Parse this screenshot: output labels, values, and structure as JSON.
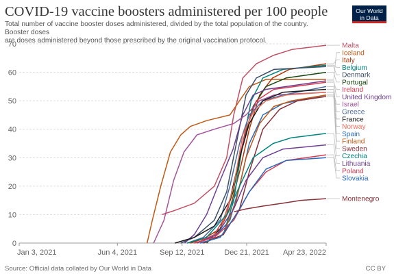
{
  "title": "COVID-19 vaccine boosters administered per 100 people",
  "subtitle_line1": "Total number of vaccine booster doses administered, divided by the total population of the country. Booster doses",
  "subtitle_line2": "are doses administered beyond those prescribed by the original vaccination protocol.",
  "logo": {
    "line1": "Our World",
    "line2": "in Data"
  },
  "footer": {
    "source": "Source: Official data collated by Our World in Data",
    "license": "CC BY"
  },
  "chart_data": {
    "type": "line",
    "title": "COVID-19 vaccine boosters administered per 100 people",
    "xlabel": "",
    "ylabel": "",
    "ylim": [
      0,
      70
    ],
    "yticks": [
      0,
      10,
      20,
      30,
      40,
      50,
      60,
      70
    ],
    "xlim": [
      "2021-01-03",
      "2022-04-23"
    ],
    "xticks": [
      {
        "label": "Jan 3, 2021",
        "date": "2021-01-03"
      },
      {
        "label": "Jun 4, 2021",
        "date": "2021-06-04"
      },
      {
        "label": "Sep 12, 2021",
        "date": "2021-09-12"
      },
      {
        "label": "Dec 21, 2021",
        "date": "2021-12-21"
      },
      {
        "label": "Apr 23, 2022",
        "date": "2022-04-23"
      }
    ],
    "grid": "horizontal-dotted",
    "legend": "right, line-end labels",
    "series": [
      {
        "name": "Malta",
        "color": "#c15065",
        "points": [
          [
            "2021-08-12",
            10
          ],
          [
            "2021-09-01",
            11.5
          ],
          [
            "2021-10-01",
            14
          ],
          [
            "2021-11-01",
            20
          ],
          [
            "2021-11-20",
            30
          ],
          [
            "2021-12-01",
            45
          ],
          [
            "2021-12-15",
            58
          ],
          [
            "2022-01-05",
            63
          ],
          [
            "2022-02-01",
            66
          ],
          [
            "2022-03-01",
            68
          ],
          [
            "2022-04-23",
            69.5
          ]
        ]
      },
      {
        "name": "Iceland",
        "color": "#c05917",
        "points": [
          [
            "2021-07-20",
            0
          ],
          [
            "2021-07-28",
            8
          ],
          [
            "2021-08-10",
            20
          ],
          [
            "2021-08-25",
            32
          ],
          [
            "2021-09-10",
            38
          ],
          [
            "2021-09-25",
            41
          ],
          [
            "2021-10-20",
            43
          ],
          [
            "2021-11-25",
            45
          ],
          [
            "2021-12-10",
            50
          ],
          [
            "2021-12-25",
            55
          ],
          [
            "2022-01-20",
            57.5
          ],
          [
            "2022-04-23",
            57.5
          ]
        ]
      },
      {
        "name": "Italy",
        "color": "#b13507",
        "points": [
          [
            "2021-09-25",
            0
          ],
          [
            "2021-10-15",
            1.5
          ],
          [
            "2021-11-10",
            5
          ],
          [
            "2021-11-25",
            12
          ],
          [
            "2021-12-10",
            25
          ],
          [
            "2021-12-25",
            40
          ],
          [
            "2022-01-10",
            52
          ],
          [
            "2022-01-30",
            58
          ],
          [
            "2022-02-25",
            61
          ],
          [
            "2022-04-23",
            63
          ]
        ]
      },
      {
        "name": "Belgium",
        "color": "#00847e",
        "points": [
          [
            "2021-10-15",
            0
          ],
          [
            "2021-11-15",
            3
          ],
          [
            "2021-12-01",
            15
          ],
          [
            "2021-12-15",
            35
          ],
          [
            "2021-12-28",
            50
          ],
          [
            "2022-01-15",
            58
          ],
          [
            "2022-02-15",
            61
          ],
          [
            "2022-04-23",
            62.5
          ]
        ]
      },
      {
        "name": "Denmark",
        "color": "#3c4e66",
        "points": [
          [
            "2021-09-10",
            0
          ],
          [
            "2021-10-01",
            2
          ],
          [
            "2021-11-01",
            8
          ],
          [
            "2021-11-20",
            18
          ],
          [
            "2021-12-05",
            35
          ],
          [
            "2021-12-20",
            52
          ],
          [
            "2022-01-05",
            58
          ],
          [
            "2022-02-01",
            61
          ],
          [
            "2022-04-23",
            62
          ]
        ]
      },
      {
        "name": "Portugal",
        "color": "#18470f",
        "points": [
          [
            "2021-10-20",
            0
          ],
          [
            "2021-11-10",
            5
          ],
          [
            "2021-11-30",
            18
          ],
          [
            "2021-12-15",
            35
          ],
          [
            "2021-12-31",
            48
          ],
          [
            "2022-01-20",
            55
          ],
          [
            "2022-02-20",
            58
          ],
          [
            "2022-04-23",
            60
          ]
        ]
      },
      {
        "name": "Ireland",
        "color": "#d73c50",
        "points": [
          [
            "2021-10-05",
            0
          ],
          [
            "2021-11-01",
            3
          ],
          [
            "2021-11-20",
            10
          ],
          [
            "2021-12-05",
            25
          ],
          [
            "2021-12-20",
            40
          ],
          [
            "2022-01-05",
            50
          ],
          [
            "2022-02-01",
            54
          ],
          [
            "2022-04-23",
            56.5
          ]
        ]
      },
      {
        "name": "United Kingdom",
        "color": "#6d3e91",
        "points": [
          [
            "2021-09-16",
            0
          ],
          [
            "2021-10-01",
            3
          ],
          [
            "2021-10-20",
            10
          ],
          [
            "2021-11-10",
            22
          ],
          [
            "2021-11-30",
            33
          ],
          [
            "2021-12-15",
            45
          ],
          [
            "2021-12-31",
            52
          ],
          [
            "2022-01-20",
            54
          ],
          [
            "2022-02-20",
            55
          ],
          [
            "2022-04-23",
            57
          ]
        ]
      },
      {
        "name": "Israel",
        "color": "#a2559c",
        "points": [
          [
            "2021-07-30",
            0
          ],
          [
            "2021-08-15",
            8
          ],
          [
            "2021-08-30",
            22
          ],
          [
            "2021-09-15",
            32
          ],
          [
            "2021-10-05",
            38
          ],
          [
            "2021-11-01",
            40
          ],
          [
            "2021-12-01",
            42
          ],
          [
            "2021-12-20",
            45
          ],
          [
            "2022-01-10",
            50
          ],
          [
            "2022-02-01",
            52
          ],
          [
            "2022-04-23",
            53
          ]
        ]
      },
      {
        "name": "Greece",
        "color": "#4c6a9c",
        "points": [
          [
            "2021-09-20",
            0
          ],
          [
            "2021-10-15",
            2
          ],
          [
            "2021-11-10",
            8
          ],
          [
            "2021-11-25",
            20
          ],
          [
            "2021-12-10",
            35
          ],
          [
            "2021-12-25",
            45
          ],
          [
            "2022-01-15",
            50
          ],
          [
            "2022-02-15",
            52
          ],
          [
            "2022-04-23",
            55
          ]
        ]
      },
      {
        "name": "France",
        "color": "#1a1a1a",
        "points": [
          [
            "2021-09-01",
            0
          ],
          [
            "2021-10-01",
            2
          ],
          [
            "2021-11-01",
            6
          ],
          [
            "2021-11-25",
            15
          ],
          [
            "2021-12-10",
            30
          ],
          [
            "2021-12-25",
            42
          ],
          [
            "2022-01-15",
            50
          ],
          [
            "2022-02-15",
            53
          ],
          [
            "2022-04-23",
            54
          ]
        ]
      },
      {
        "name": "Norway",
        "color": "#e56e5a",
        "points": [
          [
            "2021-10-10",
            0
          ],
          [
            "2021-11-10",
            4
          ],
          [
            "2021-12-01",
            20
          ],
          [
            "2021-12-15",
            38
          ],
          [
            "2021-12-31",
            46
          ],
          [
            "2022-01-20",
            50
          ],
          [
            "2022-02-20",
            52
          ],
          [
            "2022-04-23",
            53
          ]
        ]
      },
      {
        "name": "Spain",
        "color": "#286bbb",
        "points": [
          [
            "2021-10-01",
            0
          ],
          [
            "2021-11-01",
            2
          ],
          [
            "2021-11-25",
            8
          ],
          [
            "2021-12-10",
            20
          ],
          [
            "2021-12-25",
            35
          ],
          [
            "2022-01-15",
            45
          ],
          [
            "2022-02-15",
            49
          ],
          [
            "2022-04-23",
            52
          ]
        ]
      },
      {
        "name": "Finland",
        "color": "#be5915",
        "points": [
          [
            "2021-10-15",
            0
          ],
          [
            "2021-11-15",
            3
          ],
          [
            "2021-12-05",
            15
          ],
          [
            "2021-12-20",
            30
          ],
          [
            "2022-01-10",
            42
          ],
          [
            "2022-02-01",
            48
          ],
          [
            "2022-03-01",
            50
          ],
          [
            "2022-04-23",
            52
          ]
        ]
      },
      {
        "name": "Sweden",
        "color": "#883039",
        "points": [
          [
            "2021-10-15",
            0
          ],
          [
            "2021-11-15",
            3
          ],
          [
            "2021-12-10",
            12
          ],
          [
            "2021-12-25",
            25
          ],
          [
            "2022-01-15",
            40
          ],
          [
            "2022-02-10",
            47
          ],
          [
            "2022-03-10",
            50
          ],
          [
            "2022-04-23",
            51.5
          ]
        ]
      },
      {
        "name": "Czechia",
        "color": "#00847e",
        "points": [
          [
            "2021-09-20",
            0
          ],
          [
            "2021-10-20",
            2
          ],
          [
            "2021-11-20",
            10
          ],
          [
            "2021-12-10",
            20
          ],
          [
            "2021-12-31",
            30
          ],
          [
            "2022-01-31",
            35
          ],
          [
            "2022-02-28",
            37
          ],
          [
            "2022-04-23",
            38.5
          ]
        ]
      },
      {
        "name": "Lithuania",
        "color": "#6d3e91",
        "points": [
          [
            "2021-10-05",
            0
          ],
          [
            "2021-11-05",
            3
          ],
          [
            "2021-12-01",
            12
          ],
          [
            "2021-12-20",
            22
          ],
          [
            "2022-01-15",
            30
          ],
          [
            "2022-02-15",
            33
          ],
          [
            "2022-04-23",
            34.5
          ]
        ]
      },
      {
        "name": "Poland",
        "color": "#d73c50",
        "points": [
          [
            "2021-10-01",
            0
          ],
          [
            "2021-11-01",
            2
          ],
          [
            "2021-12-01",
            8
          ],
          [
            "2021-12-25",
            18
          ],
          [
            "2022-01-20",
            25
          ],
          [
            "2022-02-20",
            29
          ],
          [
            "2022-04-23",
            31
          ]
        ]
      },
      {
        "name": "Slovakia",
        "color": "#286bbb",
        "points": [
          [
            "2021-10-10",
            0
          ],
          [
            "2021-11-10",
            2
          ],
          [
            "2021-12-05",
            10
          ],
          [
            "2021-12-25",
            18
          ],
          [
            "2022-01-20",
            26
          ],
          [
            "2022-02-20",
            29
          ],
          [
            "2022-04-23",
            30
          ]
        ]
      },
      {
        "name": "Montenegro",
        "color": "#883039",
        "points": [
          [
            "2021-12-01",
            11
          ],
          [
            "2021-12-20",
            12
          ],
          [
            "2022-01-15",
            13
          ],
          [
            "2022-02-15",
            14
          ],
          [
            "2022-03-15",
            15
          ],
          [
            "2022-04-23",
            15.6
          ]
        ]
      }
    ]
  }
}
